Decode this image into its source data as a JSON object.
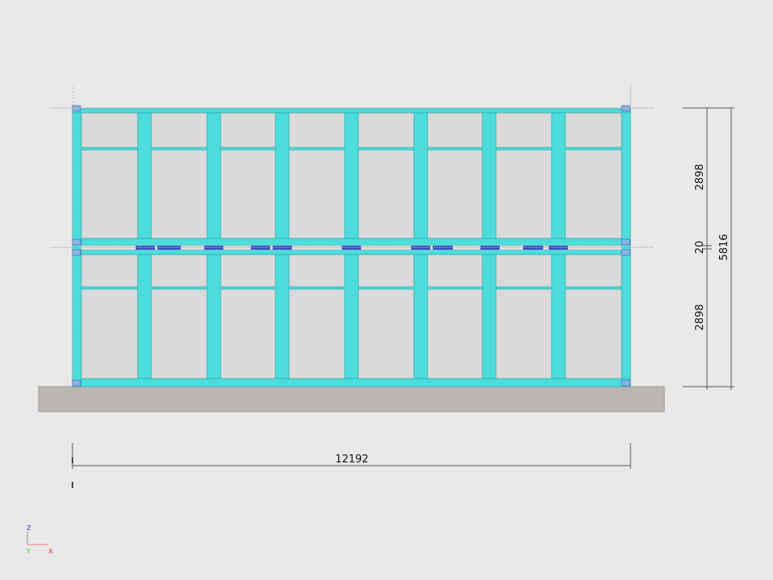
{
  "dimensions": {
    "upper_height": "2898",
    "floor_gap": "20",
    "lower_height": "2898",
    "total_height": "5816",
    "total_length": "12192"
  },
  "axes": {
    "z": "Z",
    "y": "Y",
    "x": "X"
  },
  "colors": {
    "frame": "#4ddcdc",
    "panel": "#dadada",
    "ground": "#bab6b2",
    "floor_beam": "#3a4fd8",
    "background": "#e9e9e9"
  }
}
